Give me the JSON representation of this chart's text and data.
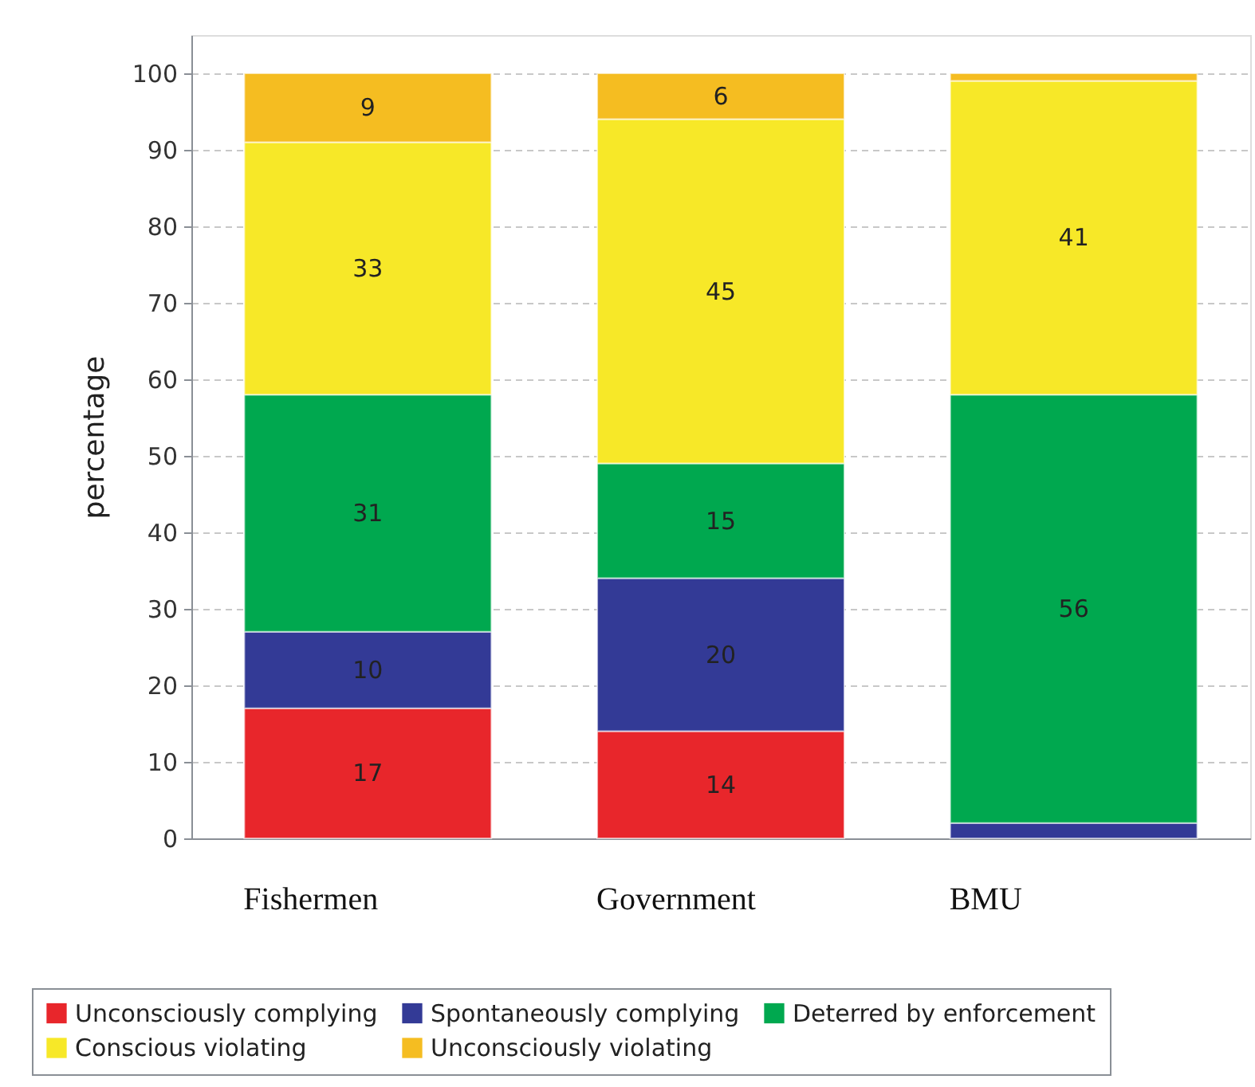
{
  "chart_data": {
    "type": "bar",
    "stacked": true,
    "ylabel": "percentage",
    "categories": [
      "Fishermen",
      "Government",
      "BMU"
    ],
    "ylim": [
      0,
      105
    ],
    "yticks": [
      0,
      10,
      20,
      30,
      40,
      50,
      60,
      70,
      80,
      90,
      100
    ],
    "grid": "y",
    "legend": "bottom",
    "series": [
      {
        "name": "Unconsciously complying",
        "color": "#e8262b",
        "values": [
          17,
          14,
          null
        ],
        "value_labels": [
          "17",
          "14",
          null
        ]
      },
      {
        "name": "Spontaneously complying",
        "color": "#333a96",
        "values": [
          10,
          20,
          2
        ],
        "value_labels": [
          "10",
          "20",
          null
        ]
      },
      {
        "name": "Deterred by enforcement",
        "color": "#00a84f",
        "values": [
          31,
          15,
          56
        ],
        "value_labels": [
          "31",
          "15",
          "56"
        ]
      },
      {
        "name": "Conscious violating",
        "color": "#f7e828",
        "values": [
          33,
          45,
          41
        ],
        "value_labels": [
          "33",
          "45",
          "41"
        ]
      },
      {
        "name": "Unconsciously violating",
        "color": "#f5bd21",
        "values": [
          9,
          6,
          1
        ],
        "value_labels": [
          "9",
          "6",
          null
        ]
      }
    ]
  }
}
